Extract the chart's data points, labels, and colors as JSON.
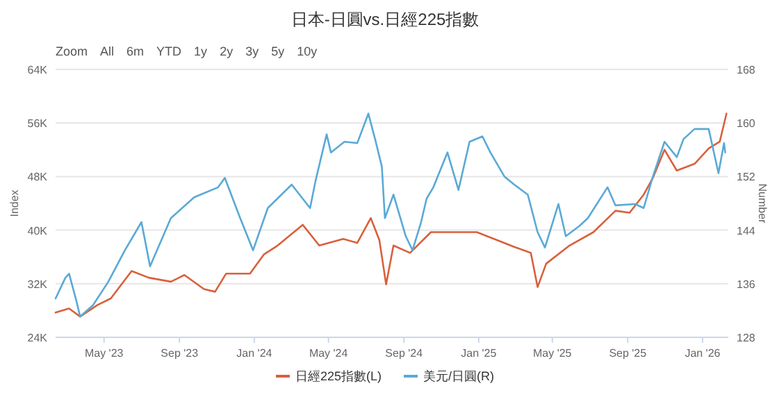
{
  "chart_data": {
    "type": "line",
    "title": "日本-日圓vs.日經225指數",
    "annotations": [
      "Zoom",
      "All",
      "6m",
      "YTD",
      "1y",
      "2y",
      "3y",
      "5y",
      "10y"
    ],
    "ylabel": "Index",
    "y2label": "Number",
    "xlim": [
      "2023-02-11",
      "2026-02-12"
    ],
    "xticks": [
      {
        "value": "2023-05-01",
        "label": "May '23"
      },
      {
        "value": "2023-09-01",
        "label": "Sep '23"
      },
      {
        "value": "2024-01-01",
        "label": "Jan '24"
      },
      {
        "value": "2024-05-01",
        "label": "May '24"
      },
      {
        "value": "2024-09-01",
        "label": "Sep '24"
      },
      {
        "value": "2025-01-01",
        "label": "Jan '25"
      },
      {
        "value": "2025-05-01",
        "label": "May '25"
      },
      {
        "value": "2025-09-01",
        "label": "Sep '25"
      },
      {
        "value": "2026-01-01",
        "label": "Jan '26"
      }
    ],
    "ylim": [
      24000,
      64000
    ],
    "yticks": [
      {
        "value": 24000,
        "label": "24K"
      },
      {
        "value": 32000,
        "label": "32K"
      },
      {
        "value": 40000,
        "label": "40K"
      },
      {
        "value": 48000,
        "label": "48K"
      },
      {
        "value": 56000,
        "label": "56K"
      },
      {
        "value": 64000,
        "label": "64K"
      }
    ],
    "y2lim": [
      128,
      168
    ],
    "y2ticks": [
      128,
      136,
      144,
      152,
      160,
      168
    ],
    "grid": "y",
    "legend": "bottom",
    "marker": "none",
    "line_style": "solid",
    "series": [
      {
        "name": "日經225指數(L)",
        "color": "#d9603b",
        "x": [
          "2023-02-11",
          "2023-03-05",
          "2023-03-23",
          "2023-04-20",
          "2023-05-12",
          "2023-06-15",
          "2023-07-13",
          "2023-08-18",
          "2023-09-09",
          "2023-10-11",
          "2023-10-29",
          "2023-11-16",
          "2023-12-25",
          "2024-01-17",
          "2024-02-08",
          "2024-03-20",
          "2024-04-16",
          "2024-05-25",
          "2024-06-17",
          "2024-07-09",
          "2024-07-23",
          "2024-08-03",
          "2024-08-15",
          "2024-09-11",
          "2024-10-15",
          "2024-12-29",
          "2025-02-28",
          "2025-03-27",
          "2025-04-07",
          "2025-04-21",
          "2025-05-29",
          "2025-07-07",
          "2025-08-12",
          "2025-09-04",
          "2025-09-27",
          "2025-10-12",
          "2025-10-31",
          "2025-11-20",
          "2025-12-19",
          "2026-01-11",
          "2026-01-29",
          "2026-02-09"
        ],
        "values": [
          27700,
          28300,
          27100,
          28800,
          29800,
          33900,
          32900,
          32300,
          33300,
          31200,
          30800,
          33500,
          33500,
          36400,
          37700,
          40800,
          37700,
          38700,
          38100,
          41800,
          38500,
          31900,
          37700,
          36600,
          39700,
          39700,
          37500,
          36600,
          31500,
          35000,
          37700,
          39700,
          42900,
          42600,
          45300,
          47800,
          52000,
          48900,
          49900,
          52200,
          53200,
          57400
        ]
      },
      {
        "name": "美元/日圓(R)",
        "color": "#5aa9d6",
        "axis": "y2",
        "x": [
          "2023-02-11",
          "2023-02-27",
          "2023-03-05",
          "2023-03-17",
          "2023-03-23",
          "2023-04-13",
          "2023-05-08",
          "2023-06-04",
          "2023-07-01",
          "2023-07-15",
          "2023-08-18",
          "2023-09-25",
          "2023-11-03",
          "2023-11-14",
          "2023-12-09",
          "2023-12-30",
          "2024-01-23",
          "2024-03-02",
          "2024-04-01",
          "2024-04-10",
          "2024-04-28",
          "2024-05-05",
          "2024-05-27",
          "2024-06-17",
          "2024-07-05",
          "2024-07-16",
          "2024-07-27",
          "2024-08-01",
          "2024-08-15",
          "2024-09-04",
          "2024-09-15",
          "2024-09-29",
          "2024-10-08",
          "2024-10-19",
          "2024-11-11",
          "2024-11-29",
          "2024-12-17",
          "2025-01-07",
          "2025-01-20",
          "2025-02-12",
          "2025-02-28",
          "2025-03-22",
          "2025-04-07",
          "2025-04-19",
          "2025-05-11",
          "2025-05-23",
          "2025-06-14",
          "2025-06-28",
          "2025-07-30",
          "2025-08-12",
          "2025-09-13",
          "2025-09-27",
          "2025-10-12",
          "2025-10-31",
          "2025-11-20",
          "2025-12-01",
          "2025-12-19",
          "2026-01-11",
          "2026-01-27",
          "2026-02-05",
          "2026-02-07"
        ],
        "values": [
          133.8,
          136.9,
          137.5,
          133.4,
          131.1,
          132.8,
          136.3,
          141,
          145.2,
          138.6,
          145.8,
          148.9,
          150.4,
          151.8,
          145.8,
          141,
          147.3,
          150.8,
          147.3,
          151.4,
          158.3,
          155.6,
          157.2,
          157,
          161.4,
          157.6,
          153.5,
          145.8,
          149.3,
          143.1,
          141,
          145.2,
          148.7,
          150.4,
          155.6,
          150,
          157.2,
          158,
          155.6,
          152,
          150.8,
          149.3,
          143.7,
          141.4,
          147.9,
          143.1,
          144.6,
          145.8,
          150.4,
          147.7,
          147.9,
          147.3,
          152,
          157.2,
          154.9,
          157.6,
          159.1,
          159.1,
          152.5,
          157,
          155.6
        ]
      }
    ]
  }
}
